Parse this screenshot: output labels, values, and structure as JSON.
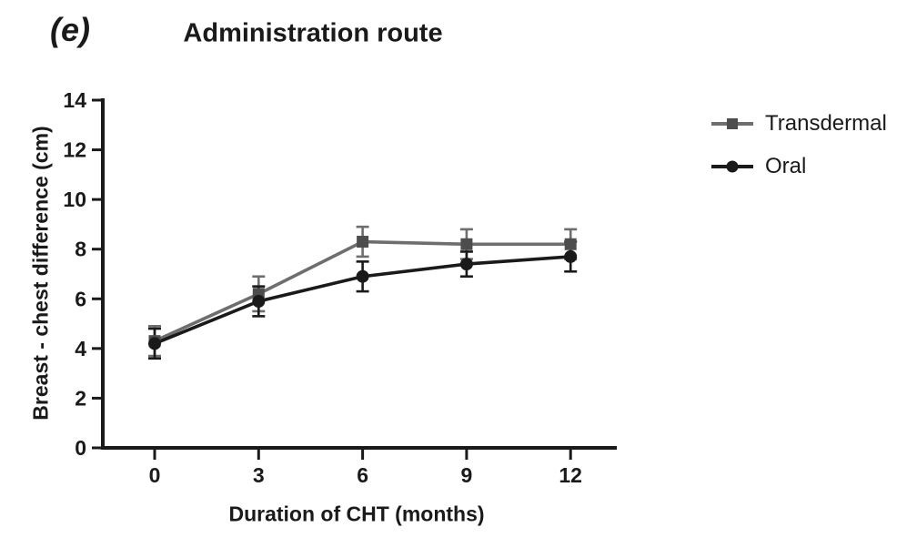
{
  "figure": {
    "panel_label": "(e)",
    "title": "Administration route"
  },
  "chart_data": {
    "type": "line",
    "title": "Administration route",
    "panel_label": "(e)",
    "xlabel": "Duration of CHT (months)",
    "ylabel": "Breast - chest difference (cm)",
    "x": [
      0,
      3,
      6,
      9,
      12
    ],
    "xticks": [
      "0",
      "3",
      "6",
      "9",
      "12"
    ],
    "yticks": [
      "0",
      "2",
      "4",
      "6",
      "8",
      "10",
      "12",
      "14"
    ],
    "ytick_values": [
      0,
      2,
      4,
      6,
      8,
      10,
      12,
      14
    ],
    "xlim": [
      -1.5,
      13.3
    ],
    "ylim": [
      0,
      14
    ],
    "grid": false,
    "legend_position": "right",
    "error_bars": true,
    "series": [
      {
        "name": "Transdermal",
        "marker": "square",
        "line_color": "#6e6e6e",
        "marker_color": "#4d4d4d",
        "values": [
          4.3,
          6.2,
          8.3,
          8.2,
          8.2
        ],
        "errors": [
          0.6,
          0.7,
          0.6,
          0.6,
          0.6
        ]
      },
      {
        "name": "Oral",
        "marker": "circle",
        "line_color": "#1a1a1a",
        "marker_color": "#1a1a1a",
        "values": [
          4.2,
          5.9,
          6.9,
          7.4,
          7.7
        ],
        "errors": [
          0.6,
          0.6,
          0.6,
          0.5,
          0.6
        ]
      }
    ],
    "axis_color": "#1a1a1a"
  }
}
